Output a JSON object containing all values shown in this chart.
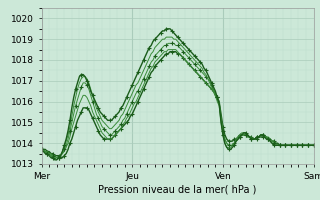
{
  "xlabel": "Pression niveau de la mer( hPa )",
  "bg_color": "#cce8d8",
  "plot_bg_color": "#cce8d8",
  "grid_major_color": "#aaccbb",
  "grid_minor_color": "#bbddcc",
  "ylim": [
    1013.0,
    1020.5
  ],
  "yticks": [
    1013,
    1014,
    1015,
    1016,
    1017,
    1018,
    1019,
    1020
  ],
  "xtick_labels": [
    "Mer",
    "Jeu",
    "Ven",
    "Sam"
  ],
  "xtick_positions": [
    0,
    48,
    96,
    144
  ],
  "total_points": 145,
  "line_color_dark": "#1a5c1a",
  "line_color_light": "#3a8c3a",
  "series": [
    [
      1013.7,
      1013.7,
      1013.7,
      1013.6,
      1013.6,
      1013.5,
      1013.5,
      1013.4,
      1013.4,
      1013.4,
      1013.3,
      1013.3,
      1013.4,
      1013.5,
      1013.7,
      1014.0,
      1014.2,
      1014.5,
      1014.8,
      1015.1,
      1015.3,
      1015.5,
      1015.7,
      1015.7,
      1015.7,
      1015.6,
      1015.4,
      1015.2,
      1015.0,
      1014.8,
      1014.6,
      1014.4,
      1014.3,
      1014.2,
      1014.2,
      1014.2,
      1014.2,
      1014.2,
      1014.3,
      1014.4,
      1014.5,
      1014.6,
      1014.7,
      1014.8,
      1014.9,
      1015.0,
      1015.1,
      1015.3,
      1015.4,
      1015.6,
      1015.8,
      1016.0,
      1016.2,
      1016.4,
      1016.6,
      1016.8,
      1017.0,
      1017.2,
      1017.4,
      1017.5,
      1017.7,
      1017.8,
      1017.9,
      1018.0,
      1018.1,
      1018.2,
      1018.3,
      1018.3,
      1018.4,
      1018.4,
      1018.4,
      1018.4,
      1018.3,
      1018.3,
      1018.2,
      1018.1,
      1018.0,
      1017.9,
      1017.8,
      1017.7,
      1017.6,
      1017.5,
      1017.4,
      1017.3,
      1017.2,
      1017.1,
      1017.0,
      1016.9,
      1016.8,
      1016.7,
      1016.6,
      1016.5,
      1016.3,
      1016.2,
      1016.0,
      1015.4,
      1014.8,
      1014.4,
      1014.2,
      1014.1,
      1014.1,
      1014.1,
      1014.2,
      1014.2,
      1014.3,
      1014.4,
      1014.4,
      1014.4,
      1014.4,
      1014.4,
      1014.3,
      1014.3,
      1014.2,
      1014.2,
      1014.2,
      1014.3,
      1014.3,
      1014.3,
      1014.3,
      1014.3,
      1014.2,
      1014.2,
      1014.1,
      1014.1,
      1014.0,
      1014.0,
      1013.9,
      1013.9,
      1013.9,
      1013.9,
      1013.9,
      1013.9,
      1013.9,
      1013.9,
      1013.9,
      1013.9,
      1013.9,
      1013.9,
      1013.9,
      1013.9,
      1013.9,
      1013.9,
      1013.9,
      1013.9,
      1013.9
    ],
    [
      1013.7,
      1013.7,
      1013.6,
      1013.6,
      1013.5,
      1013.5,
      1013.4,
      1013.4,
      1013.3,
      1013.3,
      1013.4,
      1013.5,
      1013.6,
      1013.8,
      1014.0,
      1014.3,
      1014.7,
      1015.0,
      1015.3,
      1015.6,
      1015.9,
      1016.1,
      1016.3,
      1016.3,
      1016.2,
      1016.0,
      1015.8,
      1015.5,
      1015.3,
      1015.1,
      1014.9,
      1014.7,
      1014.5,
      1014.4,
      1014.3,
      1014.2,
      1014.2,
      1014.2,
      1014.3,
      1014.4,
      1014.5,
      1014.6,
      1014.7,
      1014.9,
      1015.0,
      1015.2,
      1015.3,
      1015.5,
      1015.7,
      1015.9,
      1016.0,
      1016.2,
      1016.4,
      1016.6,
      1016.8,
      1017.0,
      1017.2,
      1017.4,
      1017.6,
      1017.7,
      1017.9,
      1018.0,
      1018.1,
      1018.2,
      1018.3,
      1018.4,
      1018.4,
      1018.5,
      1018.5,
      1018.5,
      1018.5,
      1018.5,
      1018.4,
      1018.3,
      1018.2,
      1018.1,
      1018.0,
      1017.9,
      1017.8,
      1017.7,
      1017.6,
      1017.5,
      1017.4,
      1017.3,
      1017.2,
      1017.1,
      1017.0,
      1016.9,
      1016.8,
      1016.7,
      1016.6,
      1016.5,
      1016.3,
      1016.1,
      1015.9,
      1015.2,
      1014.6,
      1014.2,
      1014.0,
      1013.9,
      1013.9,
      1013.9,
      1014.0,
      1014.1,
      1014.2,
      1014.3,
      1014.4,
      1014.4,
      1014.4,
      1014.3,
      1014.3,
      1014.2,
      1014.2,
      1014.2,
      1014.3,
      1014.3,
      1014.4,
      1014.4,
      1014.4,
      1014.3,
      1014.3,
      1014.2,
      1014.1,
      1014.1,
      1014.0,
      1013.9,
      1013.9,
      1013.9,
      1013.9,
      1013.9,
      1013.9,
      1013.9,
      1013.9,
      1013.9,
      1013.9,
      1013.9,
      1013.9,
      1013.9,
      1013.9,
      1013.9,
      1013.9,
      1013.9,
      1013.9,
      1013.9,
      1013.9
    ],
    [
      1013.7,
      1013.7,
      1013.6,
      1013.5,
      1013.5,
      1013.4,
      1013.4,
      1013.3,
      1013.3,
      1013.3,
      1013.4,
      1013.5,
      1013.7,
      1013.9,
      1014.2,
      1014.6,
      1015.0,
      1015.4,
      1015.8,
      1016.1,
      1016.4,
      1016.7,
      1016.9,
      1016.9,
      1016.8,
      1016.6,
      1016.3,
      1016.0,
      1015.7,
      1015.4,
      1015.2,
      1015.0,
      1014.8,
      1014.7,
      1014.6,
      1014.5,
      1014.4,
      1014.4,
      1014.5,
      1014.6,
      1014.7,
      1014.8,
      1014.9,
      1015.1,
      1015.2,
      1015.4,
      1015.6,
      1015.8,
      1016.0,
      1016.2,
      1016.4,
      1016.5,
      1016.7,
      1016.9,
      1017.1,
      1017.3,
      1017.5,
      1017.7,
      1017.9,
      1018.0,
      1018.2,
      1018.3,
      1018.4,
      1018.5,
      1018.6,
      1018.7,
      1018.7,
      1018.8,
      1018.8,
      1018.8,
      1018.8,
      1018.7,
      1018.7,
      1018.6,
      1018.5,
      1018.4,
      1018.3,
      1018.2,
      1018.1,
      1018.0,
      1017.9,
      1017.8,
      1017.7,
      1017.6,
      1017.5,
      1017.4,
      1017.3,
      1017.2,
      1017.1,
      1017.0,
      1016.8,
      1016.6,
      1016.4,
      1016.2,
      1016.0,
      1015.2,
      1014.6,
      1014.2,
      1014.0,
      1013.9,
      1013.9,
      1013.9,
      1014.0,
      1014.1,
      1014.2,
      1014.3,
      1014.4,
      1014.4,
      1014.4,
      1014.3,
      1014.3,
      1014.2,
      1014.2,
      1014.2,
      1014.3,
      1014.3,
      1014.4,
      1014.4,
      1014.3,
      1014.3,
      1014.2,
      1014.2,
      1014.1,
      1014.0,
      1013.9,
      1013.9,
      1013.9,
      1013.9,
      1013.9,
      1013.9,
      1013.9,
      1013.9,
      1013.9,
      1013.9,
      1013.9,
      1013.9,
      1013.9,
      1013.9,
      1013.9,
      1013.9,
      1013.9,
      1013.9,
      1013.9,
      1013.9,
      1013.9
    ],
    [
      1013.7,
      1013.6,
      1013.6,
      1013.5,
      1013.5,
      1013.4,
      1013.3,
      1013.3,
      1013.2,
      1013.3,
      1013.4,
      1013.6,
      1013.8,
      1014.1,
      1014.4,
      1014.8,
      1015.3,
      1015.8,
      1016.2,
      1016.6,
      1016.9,
      1017.1,
      1017.2,
      1017.2,
      1017.1,
      1016.9,
      1016.6,
      1016.3,
      1016.0,
      1015.7,
      1015.5,
      1015.3,
      1015.1,
      1015.0,
      1014.9,
      1014.8,
      1014.7,
      1014.7,
      1014.8,
      1014.9,
      1015.0,
      1015.1,
      1015.3,
      1015.4,
      1015.6,
      1015.8,
      1016.0,
      1016.2,
      1016.4,
      1016.6,
      1016.8,
      1016.9,
      1017.1,
      1017.3,
      1017.5,
      1017.7,
      1017.9,
      1018.1,
      1018.3,
      1018.4,
      1018.6,
      1018.7,
      1018.8,
      1018.9,
      1019.0,
      1019.0,
      1019.1,
      1019.1,
      1019.1,
      1019.1,
      1019.0,
      1019.0,
      1018.9,
      1018.8,
      1018.7,
      1018.6,
      1018.5,
      1018.4,
      1018.3,
      1018.2,
      1018.1,
      1018.0,
      1017.9,
      1017.8,
      1017.7,
      1017.6,
      1017.4,
      1017.3,
      1017.1,
      1016.9,
      1016.7,
      1016.5,
      1016.3,
      1016.0,
      1015.8,
      1015.0,
      1014.4,
      1014.0,
      1013.8,
      1013.8,
      1013.8,
      1013.9,
      1014.0,
      1014.2,
      1014.3,
      1014.4,
      1014.5,
      1014.5,
      1014.5,
      1014.4,
      1014.3,
      1014.3,
      1014.2,
      1014.2,
      1014.3,
      1014.3,
      1014.4,
      1014.4,
      1014.3,
      1014.3,
      1014.2,
      1014.1,
      1014.0,
      1013.9,
      1013.9,
      1013.9,
      1013.9,
      1013.9,
      1013.9,
      1013.9,
      1013.9,
      1013.9,
      1013.9,
      1013.9,
      1013.9,
      1013.9,
      1013.9,
      1013.9,
      1013.9,
      1013.9,
      1013.9,
      1013.9,
      1013.9,
      1013.9,
      1013.9
    ],
    [
      1013.7,
      1013.6,
      1013.5,
      1013.5,
      1013.4,
      1013.3,
      1013.3,
      1013.2,
      1013.2,
      1013.3,
      1013.4,
      1013.6,
      1013.9,
      1014.2,
      1014.6,
      1015.1,
      1015.7,
      1016.2,
      1016.6,
      1016.9,
      1017.2,
      1017.3,
      1017.3,
      1017.2,
      1017.0,
      1016.8,
      1016.5,
      1016.3,
      1016.1,
      1015.9,
      1015.7,
      1015.5,
      1015.4,
      1015.3,
      1015.2,
      1015.1,
      1015.1,
      1015.1,
      1015.2,
      1015.3,
      1015.4,
      1015.5,
      1015.7,
      1015.8,
      1016.0,
      1016.2,
      1016.4,
      1016.6,
      1016.8,
      1017.0,
      1017.2,
      1017.4,
      1017.6,
      1017.8,
      1018.0,
      1018.2,
      1018.4,
      1018.6,
      1018.7,
      1018.9,
      1019.0,
      1019.1,
      1019.2,
      1019.3,
      1019.4,
      1019.4,
      1019.5,
      1019.5,
      1019.5,
      1019.4,
      1019.3,
      1019.2,
      1019.1,
      1019.0,
      1018.9,
      1018.8,
      1018.7,
      1018.6,
      1018.5,
      1018.4,
      1018.3,
      1018.2,
      1018.1,
      1018.0,
      1017.9,
      1017.8,
      1017.6,
      1017.5,
      1017.3,
      1017.1,
      1016.9,
      1016.7,
      1016.5,
      1016.2,
      1015.9,
      1015.0,
      1014.4,
      1014.0,
      1013.8,
      1013.7,
      1013.7,
      1013.8,
      1013.9,
      1014.1,
      1014.2,
      1014.3,
      1014.4,
      1014.5,
      1014.5,
      1014.4,
      1014.3,
      1014.2,
      1014.2,
      1014.2,
      1014.3,
      1014.3,
      1014.4,
      1014.4,
      1014.3,
      1014.2,
      1014.2,
      1014.1,
      1014.0,
      1013.9,
      1013.9,
      1013.9,
      1013.9,
      1013.9,
      1013.9,
      1013.9,
      1013.9,
      1013.9,
      1013.9,
      1013.9,
      1013.9,
      1013.9,
      1013.9,
      1013.9,
      1013.9,
      1013.9,
      1013.9,
      1013.9,
      1013.9,
      1013.9,
      1013.9
    ]
  ],
  "marker_series": [
    0,
    2,
    4
  ],
  "marker": "+",
  "marker_size": 2.5,
  "marker_color": "#1a5c1a",
  "markevery": 3
}
